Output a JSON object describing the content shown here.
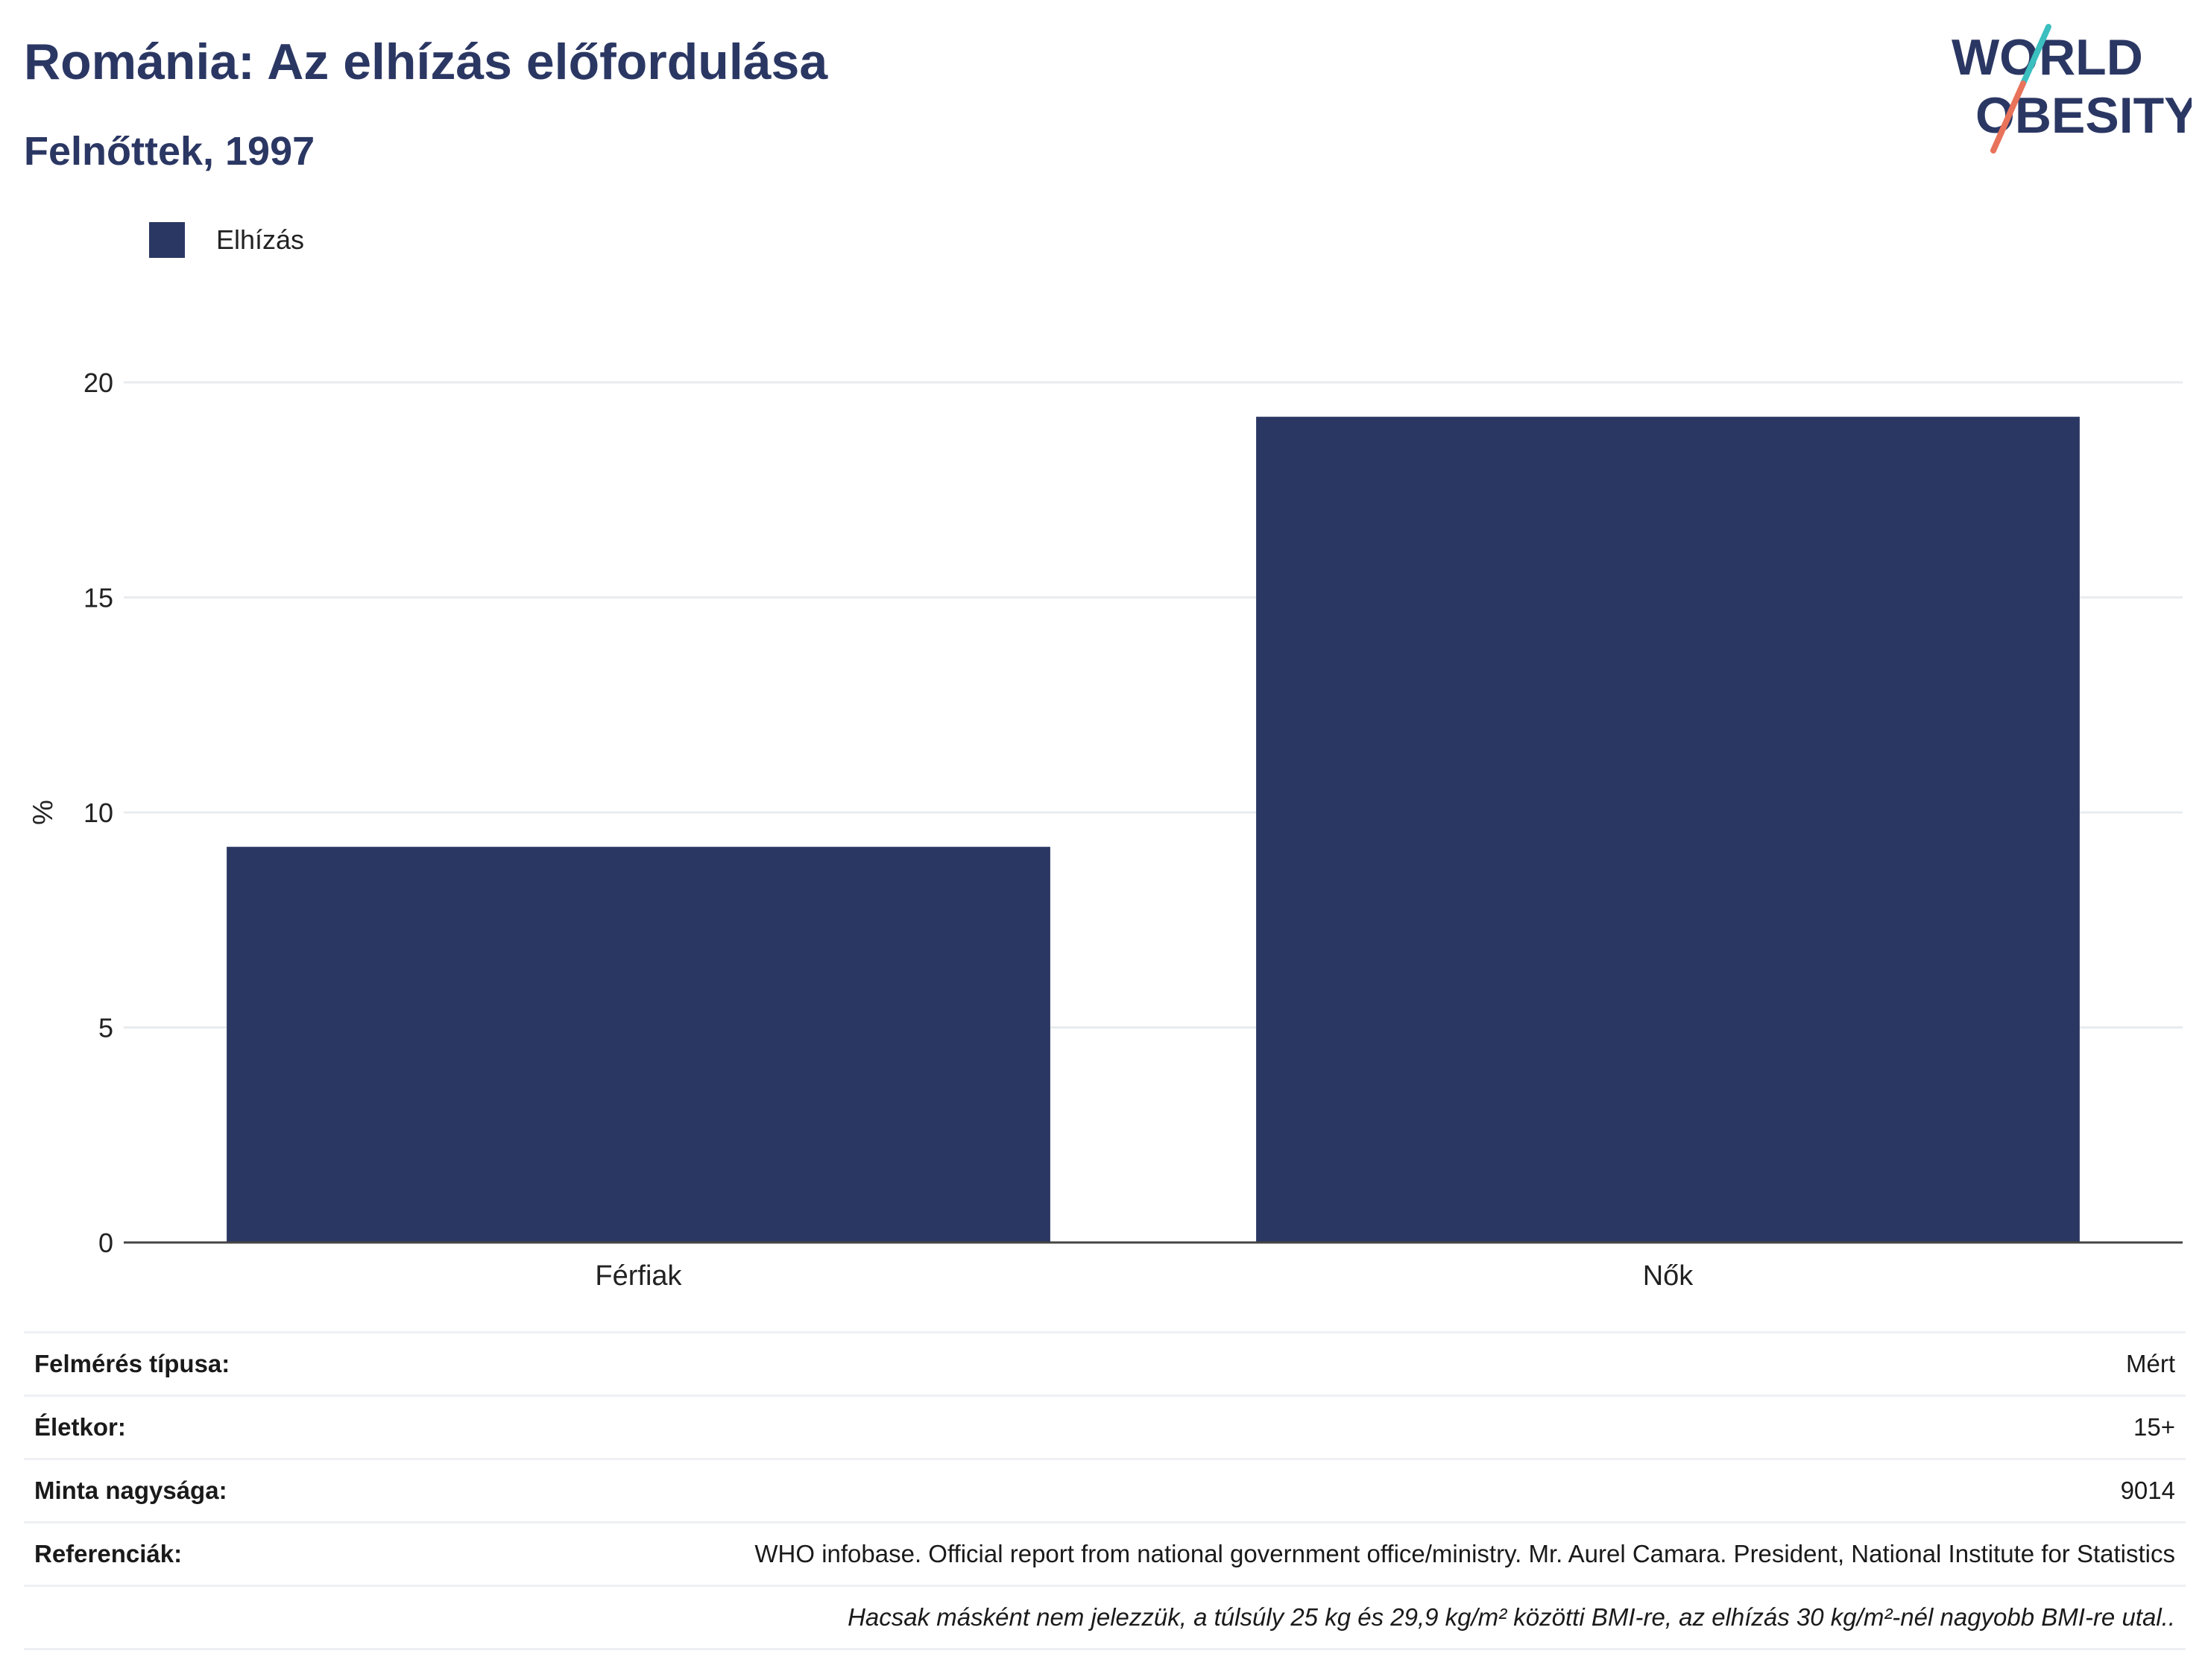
{
  "header": {
    "title": "Románia: Az elhízás előfordulása",
    "subtitle": "Felnőttek, 1997"
  },
  "logo": {
    "line1": "WORLD",
    "line2": "OBESITY"
  },
  "chart_data": {
    "type": "bar",
    "categories": [
      "Férfiak",
      "Nők"
    ],
    "series": [
      {
        "name": "Elhízás",
        "values": [
          9.2,
          19.2
        ],
        "color": "#2b3763"
      }
    ],
    "ylabel": "%",
    "xlabel": "",
    "ylim": [
      0,
      20
    ],
    "yticks": [
      0,
      5,
      10,
      15,
      20
    ],
    "grid": true,
    "legend": "top-left"
  },
  "info": {
    "rows": [
      {
        "label": "Felmérés típusa:",
        "value": "Mért"
      },
      {
        "label": "Életkor:",
        "value": "15+"
      },
      {
        "label": "Minta nagysága:",
        "value": "9014"
      },
      {
        "label": "Referenciák:",
        "value": "WHO infobase. Official report from national government office/ministry. Mr. Aurel Camara. President, National Institute for Statistics"
      }
    ],
    "note": "Hacsak másként nem jelezzük, a túlsúly 25 kg és 29,9 kg/m² közötti BMI-re, az elhízás 30 kg/m²-nél nagyobb BMI-re utal.."
  },
  "colors": {
    "brand": "#2b3763",
    "logo_teal": "#3bbfbf",
    "logo_coral": "#e8735a"
  }
}
